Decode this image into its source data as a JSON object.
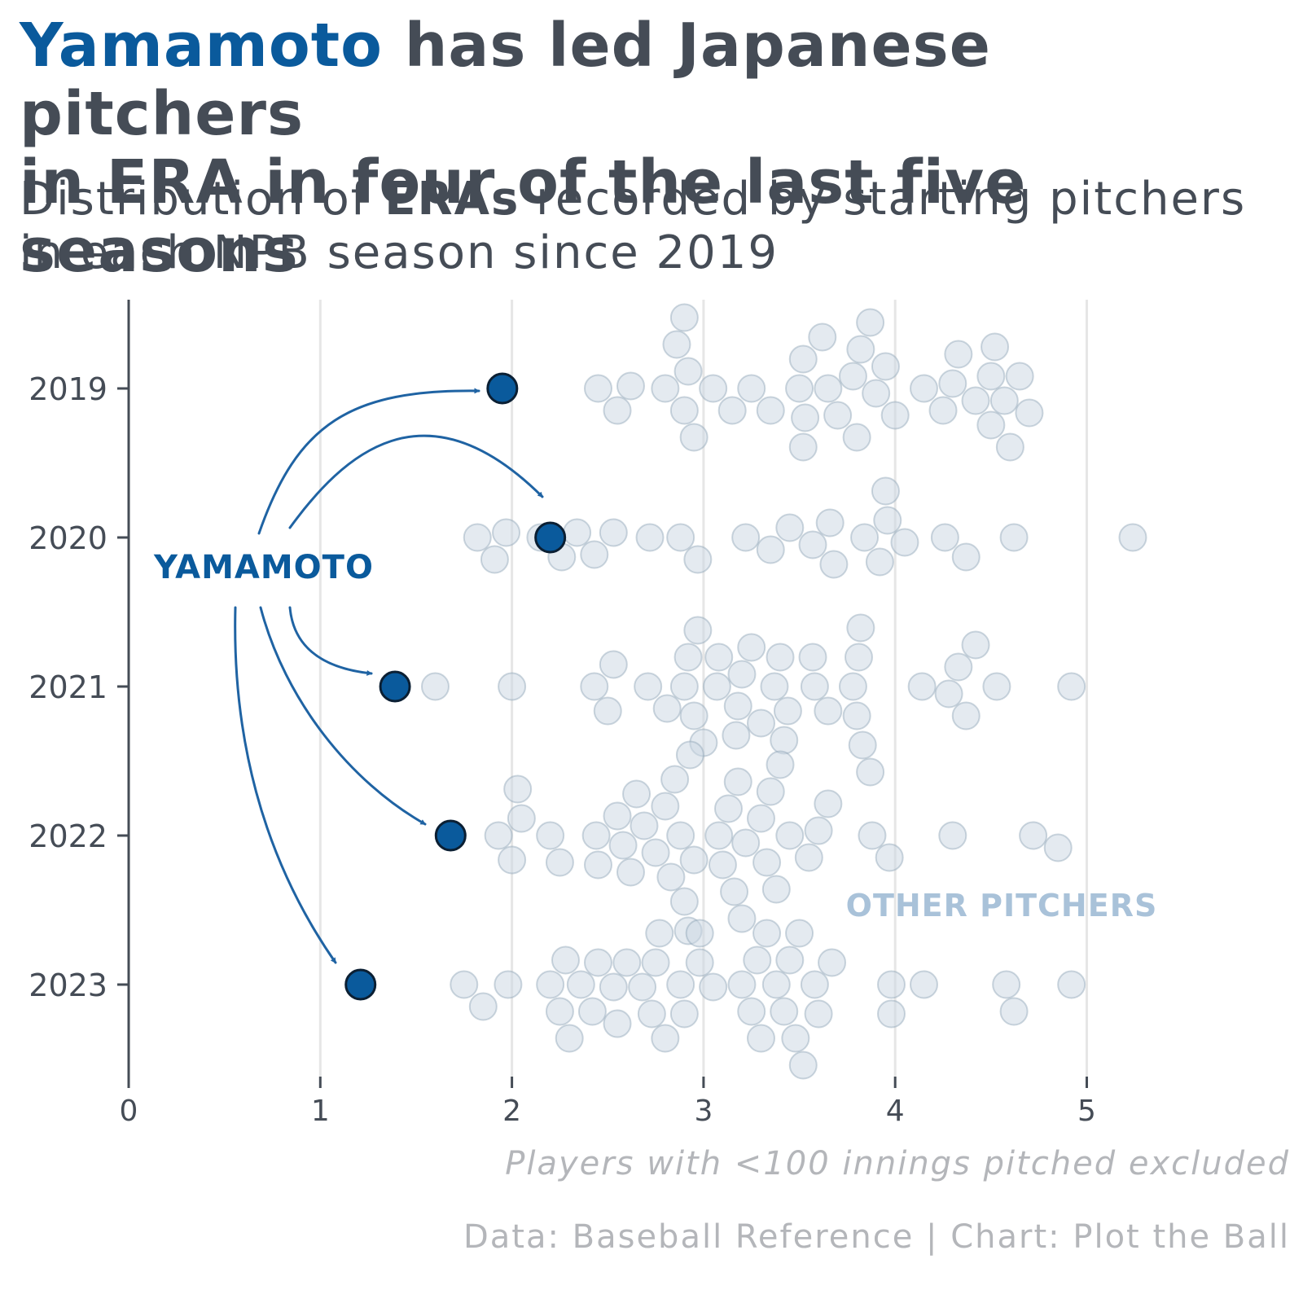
{
  "title": {
    "highlight": "Yamamoto",
    "line1_rest": " has led Japanese pitchers",
    "line2": "in ERA in four of the last five seasons"
  },
  "subtitle": {
    "part1": "Distribution of ",
    "bold": "ERAs",
    "part2": " recorded by starting pitchers",
    "line2": "in each NPB season since 2019"
  },
  "notes": {
    "exclusion": "Players with <100 innings pitched excluded",
    "source": "Data: Baseball Reference | Chart: Plot the Ball"
  },
  "colors": {
    "highlight": "#0a5a9c",
    "other": "#c9d6e2",
    "other_label": "#a9c2d9",
    "text": "#454c56",
    "grid": "#e6e6e6"
  },
  "chart_data": {
    "type": "scatter",
    "xlim": [
      0,
      5.6
    ],
    "x_ticks": [
      0,
      1,
      2,
      3,
      4,
      5
    ],
    "y_categories": [
      "2019",
      "2020",
      "2021",
      "2022",
      "2023"
    ],
    "grid": "vertical",
    "annotations": {
      "yamamoto_label": "YAMAMOTO",
      "others_label": "OTHER PITCHERS"
    },
    "yamamoto": [
      {
        "season": "2019",
        "era": 1.95
      },
      {
        "season": "2020",
        "era": 2.2
      },
      {
        "season": "2021",
        "era": 1.39
      },
      {
        "season": "2022",
        "era": 1.68
      },
      {
        "season": "2023",
        "era": 1.21
      }
    ],
    "other_pitchers": {
      "2019": [
        2.45,
        2.55,
        2.62,
        2.8,
        2.9,
        2.92,
        2.86,
        2.95,
        2.9,
        3.05,
        3.15,
        3.25,
        3.35,
        3.5,
        3.53,
        3.52,
        3.52,
        3.62,
        3.65,
        3.7,
        3.78,
        3.82,
        3.8,
        3.9,
        3.87,
        3.95,
        4.0,
        4.15,
        4.25,
        4.3,
        4.33,
        4.42,
        4.5,
        4.5,
        4.52,
        4.57,
        4.6,
        4.65,
        4.7
      ],
      "2020": [
        1.82,
        1.91,
        1.97,
        2.15,
        2.26,
        2.34,
        2.43,
        2.53,
        2.72,
        2.88,
        2.97,
        3.22,
        3.35,
        3.45,
        3.57,
        3.66,
        3.68,
        3.84,
        3.92,
        3.96,
        3.95,
        4.05,
        4.26,
        4.37,
        4.62,
        5.24
      ],
      "2021": [
        1.6,
        2.0,
        2.43,
        2.5,
        2.53,
        2.71,
        2.81,
        2.9,
        2.92,
        2.95,
        2.97,
        3.0,
        3.07,
        3.08,
        3.18,
        3.17,
        3.2,
        3.25,
        3.3,
        3.37,
        3.4,
        3.42,
        3.44,
        3.58,
        3.57,
        3.65,
        3.78,
        3.8,
        3.81,
        3.83,
        3.82,
        3.87,
        4.14,
        4.28,
        4.33,
        4.37,
        4.42,
        4.53,
        4.92
      ],
      "2022": [
        1.93,
        2.0,
        2.05,
        2.03,
        2.2,
        2.25,
        2.44,
        2.45,
        2.55,
        2.58,
        2.62,
        2.65,
        2.69,
        2.75,
        2.8,
        2.83,
        2.85,
        2.88,
        2.9,
        2.93,
        2.95,
        2.92,
        3.08,
        3.1,
        3.13,
        3.16,
        3.18,
        3.2,
        3.22,
        3.3,
        3.33,
        3.35,
        3.38,
        3.4,
        3.45,
        3.55,
        3.6,
        3.65,
        3.88,
        3.97,
        4.3,
        4.72,
        4.85
      ],
      "2023": [
        1.75,
        1.85,
        1.98,
        2.2,
        2.25,
        2.28,
        2.3,
        2.36,
        2.42,
        2.45,
        2.53,
        2.55,
        2.6,
        2.68,
        2.73,
        2.75,
        2.77,
        2.8,
        2.88,
        2.9,
        2.98,
        2.98,
        3.05,
        3.2,
        3.25,
        3.28,
        3.3,
        3.33,
        3.38,
        3.42,
        3.45,
        3.48,
        3.5,
        3.52,
        3.58,
        3.6,
        3.67,
        3.98,
        3.98,
        4.15,
        4.58,
        4.62,
        4.92
      ]
    }
  }
}
